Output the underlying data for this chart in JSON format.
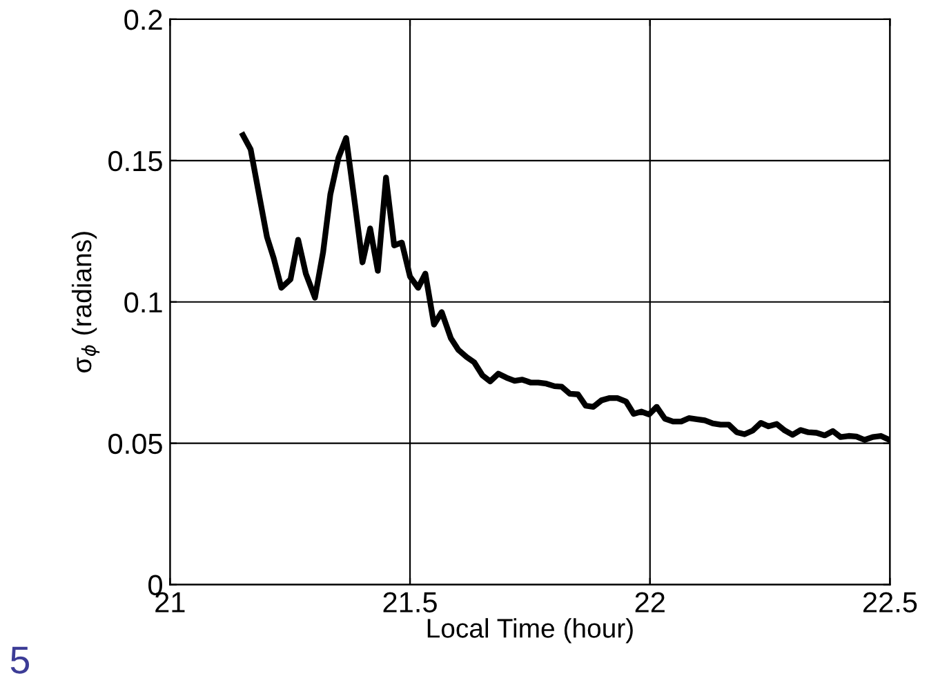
{
  "chart_data": {
    "type": "line",
    "xlabel": "Local Time (hour)",
    "ylabel": "σ$_{ϕ}$ (radians)",
    "xlim": [
      21,
      22.5
    ],
    "xticks": [
      21,
      21.5,
      22,
      22.5
    ],
    "ylim": [
      0,
      0.2
    ],
    "yticks": [
      0,
      0.05,
      0.1,
      0.15,
      0.2
    ],
    "grid": true,
    "annotations": [
      "5"
    ],
    "series": [
      {
        "color": "#000000",
        "x": [
          21.152,
          21.168,
          21.186,
          21.202,
          21.216,
          21.232,
          21.251,
          21.267,
          21.283,
          21.302,
          21.319,
          21.334,
          21.351,
          21.367,
          21.385,
          21.401,
          21.417,
          21.433,
          21.45,
          21.467,
          21.483,
          21.5,
          21.517,
          21.532,
          21.55,
          21.566,
          21.585,
          21.601,
          21.618,
          21.634,
          21.651,
          21.667,
          21.684,
          21.701,
          21.718,
          21.734,
          21.751,
          21.767,
          21.784,
          21.801,
          21.816,
          21.833,
          21.85,
          21.866,
          21.882,
          21.899,
          21.916,
          21.932,
          21.95,
          21.966,
          21.982,
          21.998,
          22.014,
          22.031,
          22.048,
          22.065,
          22.081,
          22.098,
          22.114,
          22.131,
          22.147,
          22.164,
          22.181,
          22.197,
          22.214,
          22.231,
          22.247,
          22.264,
          22.281,
          22.297,
          22.314,
          22.33,
          22.347,
          22.364,
          22.381,
          22.397,
          22.414,
          22.43,
          22.447,
          22.464,
          22.481,
          22.499
        ],
        "values": [
          0.159,
          0.154,
          0.1375,
          0.123,
          0.1155,
          0.105,
          0.108,
          0.122,
          0.11,
          0.1015,
          0.1176,
          0.138,
          0.151,
          0.158,
          0.135,
          0.114,
          0.126,
          0.111,
          0.144,
          0.12,
          0.121,
          0.109,
          0.105,
          0.11,
          0.092,
          0.0964,
          0.0872,
          0.083,
          0.0805,
          0.0786,
          0.074,
          0.0719,
          0.0746,
          0.0732,
          0.0721,
          0.0725,
          0.0715,
          0.0715,
          0.0711,
          0.0702,
          0.07,
          0.0675,
          0.0673,
          0.0633,
          0.0629,
          0.0652,
          0.066,
          0.066,
          0.0648,
          0.0604,
          0.0612,
          0.0602,
          0.0629,
          0.0587,
          0.0577,
          0.0577,
          0.0589,
          0.0585,
          0.0581,
          0.057,
          0.0566,
          0.0566,
          0.0539,
          0.0532,
          0.0545,
          0.0572,
          0.056,
          0.0568,
          0.0545,
          0.053,
          0.0547,
          0.0539,
          0.0537,
          0.0528,
          0.0543,
          0.0522,
          0.0526,
          0.0524,
          0.0512,
          0.0522,
          0.0526,
          0.0512
        ]
      }
    ]
  }
}
